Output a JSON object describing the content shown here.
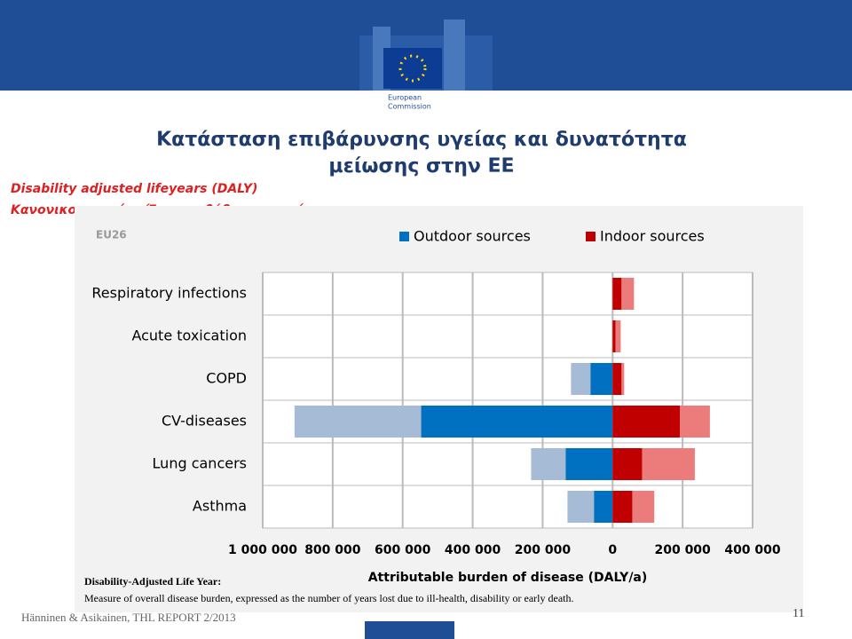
{
  "logo_text": [
    "European",
    "Commission"
  ],
  "title": [
    "Κατάσταση επιβάρυνσης υγείας και δυνατότητα",
    "μείωσης στην ΕΕ"
  ],
  "subtitle": [
    "Disability adjusted lifeyears (DALY)",
    "Κανονικοποιημένα Έτη υποβάθμισης υγείας"
  ],
  "chart_data": {
    "type": "bar",
    "orientation": "horizontal",
    "region_label": "EU26",
    "categories": [
      "Respiratory infections",
      "Acute toxication",
      "COPD",
      "CV-diseases",
      "Lung cancers",
      "Asthma"
    ],
    "series": [
      {
        "name": "Outdoor sources",
        "color": "#0070c0",
        "light_color": "#a5bbd6",
        "values": [
          0,
          0,
          -63000,
          -547000,
          -134000,
          -53000
        ],
        "upper": [
          0,
          0,
          -119000,
          -909000,
          -233000,
          -129000
        ]
      },
      {
        "name": "Indoor sources",
        "color": "#c00000",
        "light_color": "#ec7c7c",
        "values": [
          25000,
          8000,
          25000,
          192000,
          84000,
          56000
        ],
        "upper": [
          61000,
          23000,
          33000,
          278000,
          235000,
          119000
        ]
      }
    ],
    "xlim": [
      -1000000,
      400000
    ],
    "xticks": [
      {
        "value": -1000000,
        "label": "1 000 000"
      },
      {
        "value": -800000,
        "label": "800 000"
      },
      {
        "value": -600000,
        "label": "600 000"
      },
      {
        "value": -400000,
        "label": "400 000"
      },
      {
        "value": -200000,
        "label": "200 000"
      },
      0,
      {
        "value": 200000,
        "label": "200 000"
      },
      {
        "value": 400000,
        "label": "400 000"
      }
    ],
    "xlabel": "Attributable burden of disease (DALY/a)",
    "grid": true
  },
  "footnote": {
    "term": "Disability-Adjusted Life Year:",
    "definition": "Measure of overall disease burden, expressed as the number of years lost due to ill-health, disability or early death."
  },
  "source": "Hänninen & Asikainen, THL REPORT 2/2013",
  "page_number": "11"
}
